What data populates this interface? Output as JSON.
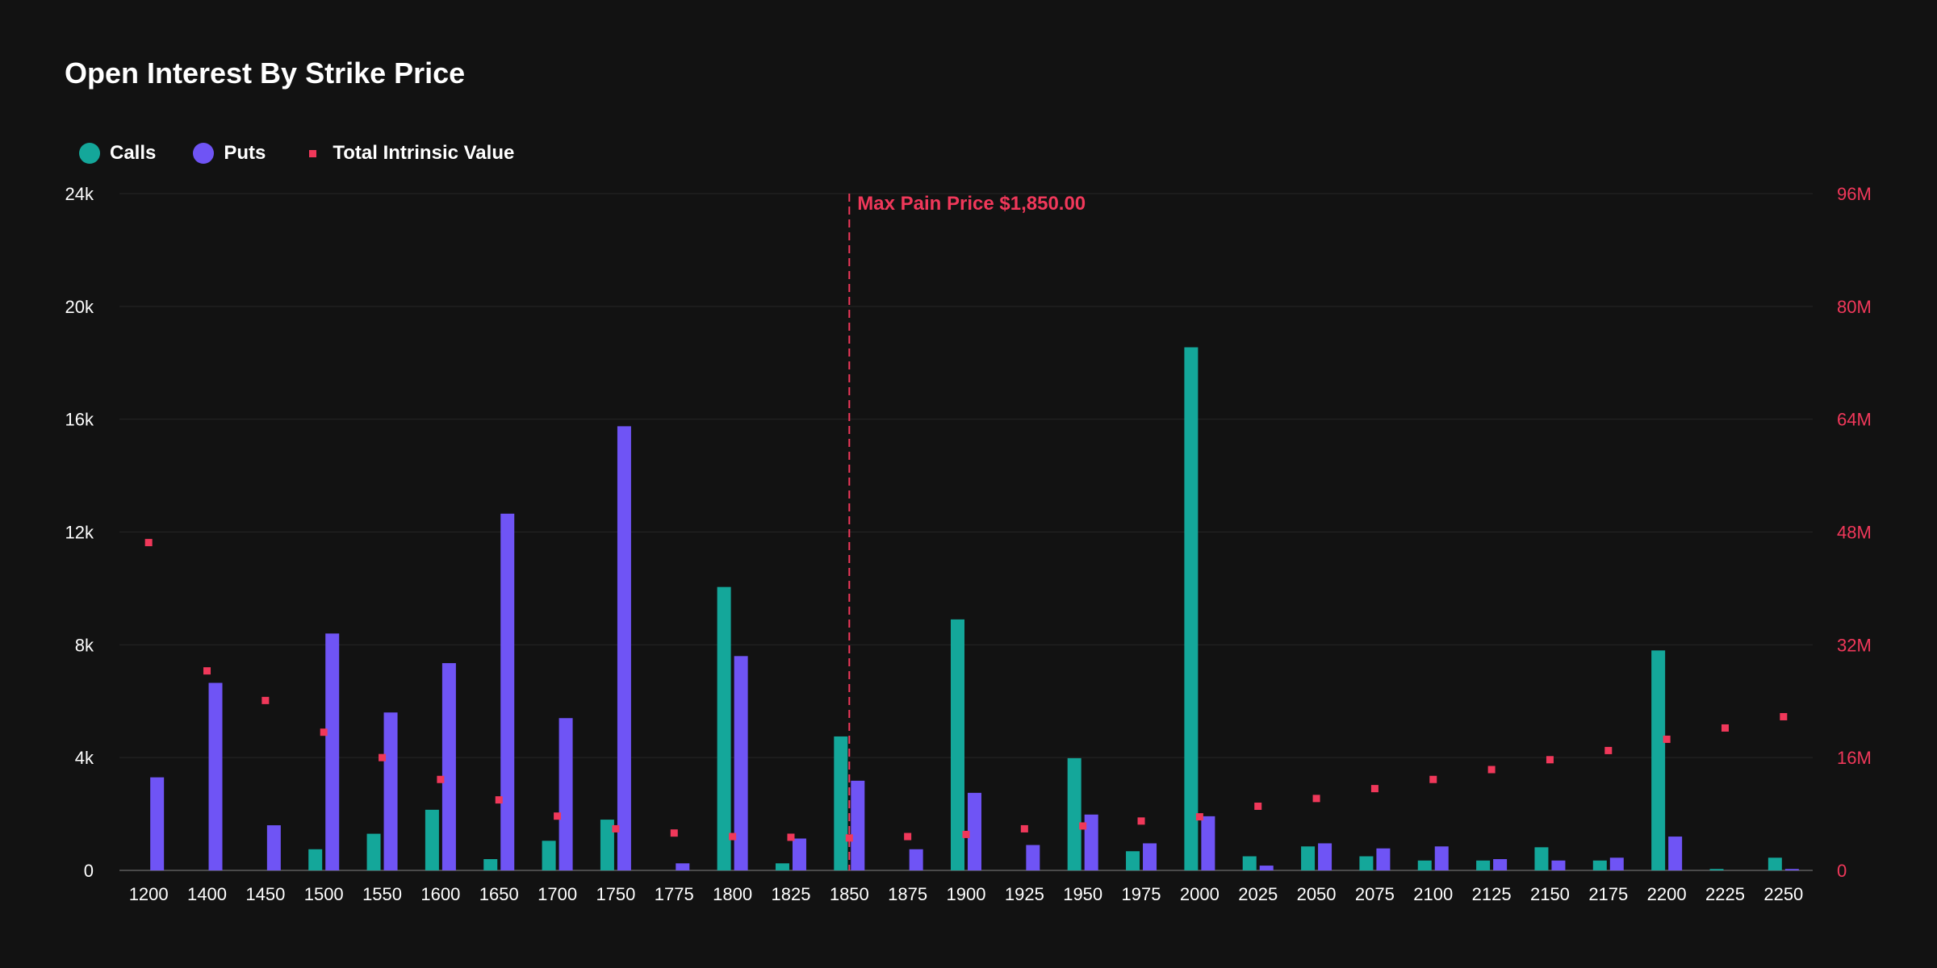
{
  "chart_data": {
    "type": "bar",
    "title": "Open Interest By Strike Price",
    "categories": [
      "1200",
      "1400",
      "1450",
      "1500",
      "1550",
      "1600",
      "1650",
      "1700",
      "1750",
      "1775",
      "1800",
      "1825",
      "1850",
      "1875",
      "1900",
      "1925",
      "1950",
      "1975",
      "2000",
      "2025",
      "2050",
      "2075",
      "2100",
      "2125",
      "2150",
      "2175",
      "2200",
      "2225",
      "2250"
    ],
    "series": [
      {
        "name": "Calls",
        "color": "#14a79a",
        "axis": "left",
        "values": [
          0,
          0,
          0,
          750,
          1300,
          2150,
          400,
          1050,
          1800,
          0,
          10050,
          250,
          4750,
          0,
          8900,
          0,
          3980,
          680,
          18550,
          500,
          850,
          500,
          350,
          350,
          820,
          350,
          7800,
          50,
          450
        ]
      },
      {
        "name": "Puts",
        "color": "#6f54f5",
        "axis": "left",
        "values": [
          3300,
          6650,
          1600,
          8400,
          5600,
          7350,
          12650,
          5400,
          15750,
          250,
          7600,
          1130,
          3180,
          750,
          2750,
          900,
          1980,
          960,
          1920,
          170,
          960,
          780,
          850,
          400,
          350,
          450,
          1200,
          0,
          50
        ]
      },
      {
        "name": "Total Intrinsic Value",
        "color": "#f0385a",
        "axis": "right",
        "type": "scatter",
        "values": [
          46.5,
          28.3,
          24.1,
          19.6,
          16.0,
          12.9,
          10.0,
          7.7,
          5.9,
          5.3,
          4.8,
          4.7,
          4.6,
          4.8,
          5.1,
          5.9,
          6.3,
          7.0,
          7.6,
          9.1,
          10.2,
          11.6,
          12.9,
          14.3,
          15.7,
          17.0,
          18.6,
          20.2,
          21.8
        ]
      }
    ],
    "yleft": {
      "ticks": [
        "0",
        "4k",
        "8k",
        "12k",
        "16k",
        "20k",
        "24k"
      ],
      "lim": [
        0,
        24000
      ]
    },
    "yright": {
      "ticks": [
        "0",
        "16M",
        "32M",
        "48M",
        "64M",
        "80M",
        "96M"
      ],
      "lim": [
        0,
        96
      ]
    },
    "annotation": {
      "label": "Max Pain Price $1,850.00",
      "category": "1850"
    },
    "grid": true,
    "legend_position": "top-left"
  },
  "colors": {
    "background": "#121212",
    "grid": "#262626",
    "axis_left": "#ffffff",
    "axis_right": "#f0385a"
  }
}
